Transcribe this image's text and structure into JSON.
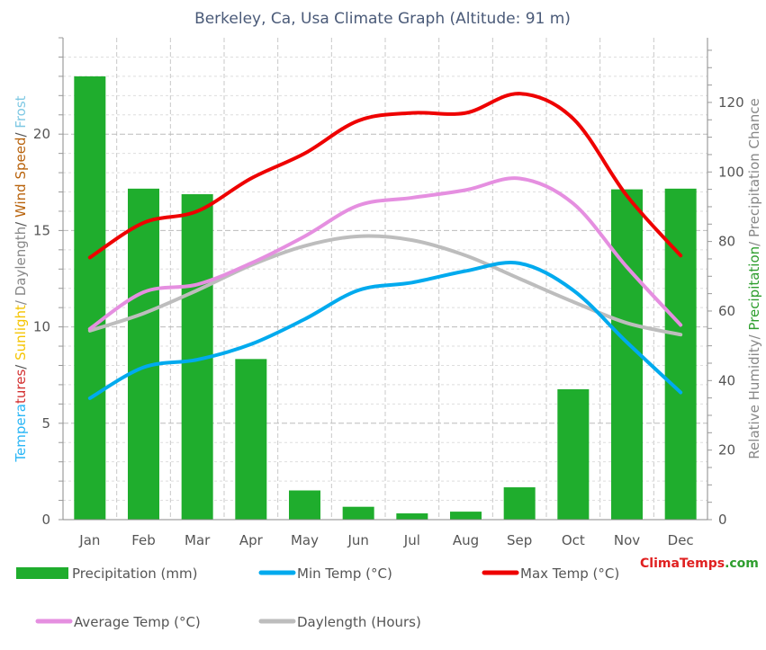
{
  "chart_data": {
    "type": "bar",
    "title": "Berkeley, Ca, Usa Climate Graph (Altitude: 91 m)",
    "categories": [
      "Jan",
      "Feb",
      "Mar",
      "Apr",
      "May",
      "Jun",
      "Jul",
      "Aug",
      "Sep",
      "Oct",
      "Nov",
      "Dec"
    ],
    "y_left": {
      "range": [
        0,
        25
      ],
      "ticks": [
        0,
        5,
        10,
        15,
        20
      ],
      "label_parts": [
        {
          "text": "Tempera",
          "color": "#29b6f6"
        },
        {
          "text": "tures",
          "color": "#d32f2f"
        },
        {
          "text": "/ ",
          "color": "#555555"
        },
        {
          "text": "Sunlight",
          "color": "#f5c400"
        },
        {
          "text": "/ Daylength",
          "color": "#888888"
        },
        {
          "text": "/ ",
          "color": "#555555"
        },
        {
          "text": "Wind Speed",
          "color": "#b8620b"
        },
        {
          "text": "/ ",
          "color": "#555555"
        },
        {
          "text": "Frost",
          "color": "#7ec8e3"
        }
      ]
    },
    "y_right": {
      "range": [
        0,
        138.6
      ],
      "ticks": [
        0,
        20,
        40,
        60,
        80,
        100,
        120
      ],
      "label_parts": [
        {
          "text": "Relative Humidity/ ",
          "color": "#888888"
        },
        {
          "text": "Precipitation",
          "color": "#2e9e2e"
        },
        {
          "text": "/ Precipitation Chance",
          "color": "#888888"
        }
      ]
    },
    "grid": true,
    "series": [
      {
        "name": "Precipitation (mm)",
        "kind": "bar",
        "axis": "right",
        "color": "#1fad2d",
        "values": [
          127.5,
          95.2,
          93.6,
          46.2,
          8.4,
          3.7,
          1.8,
          2.3,
          9.3,
          37.5,
          95.0,
          95.2
        ]
      },
      {
        "name": "Min Temp (°C)",
        "kind": "line",
        "axis": "left",
        "color": "#00aaee",
        "values": [
          6.3,
          7.9,
          8.3,
          9.1,
          10.4,
          11.9,
          12.3,
          12.9,
          13.3,
          11.9,
          9.2,
          6.6
        ]
      },
      {
        "name": "Max Temp (°C)",
        "kind": "line",
        "axis": "left",
        "color": "#ee0000",
        "values": [
          13.6,
          15.4,
          16.0,
          17.7,
          19.0,
          20.7,
          21.1,
          21.1,
          22.1,
          20.8,
          16.8,
          13.7
        ]
      },
      {
        "name": "Average Temp (°C)",
        "kind": "line",
        "axis": "left",
        "color": "#e58fe0",
        "values": [
          9.9,
          11.8,
          12.2,
          13.3,
          14.7,
          16.3,
          16.7,
          17.1,
          17.7,
          16.4,
          13.1,
          10.1
        ]
      },
      {
        "name": "Daylength (Hours)",
        "kind": "line",
        "axis": "left",
        "color": "#bdbdbd",
        "values": [
          9.8,
          10.7,
          11.9,
          13.2,
          14.2,
          14.7,
          14.5,
          13.7,
          12.5,
          11.3,
          10.2,
          9.6
        ]
      }
    ],
    "legend": {
      "placement": "bottom"
    }
  },
  "brand": {
    "parts": [
      {
        "text": "Clima",
        "color": "#e02020"
      },
      {
        "text": "Temps",
        "color": "#e02020"
      },
      {
        "text": ".com",
        "color": "#2e9e2e"
      }
    ]
  }
}
